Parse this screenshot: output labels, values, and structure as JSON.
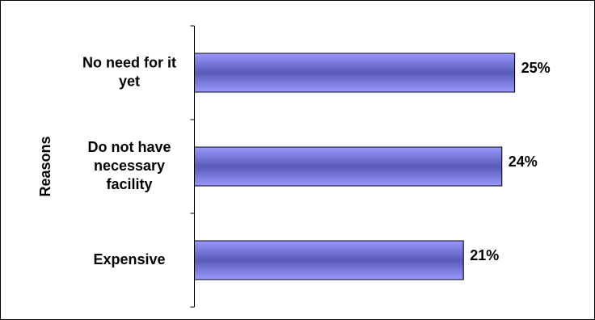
{
  "chart_data": {
    "type": "bar",
    "orientation": "horizontal",
    "ylabel": "Reasons",
    "xlabel": "",
    "categories": [
      [
        "No need for it",
        "yet"
      ],
      [
        "Do not have",
        "necessary",
        "facility"
      ],
      [
        "Expensive"
      ]
    ],
    "values": [
      25,
      24,
      21
    ],
    "data_labels": [
      "25%",
      "24%",
      "21%"
    ],
    "xlim": [
      0,
      29
    ],
    "grid": false,
    "legend": "none",
    "bar_color": "#9999ff",
    "bar_dark": "#5a5ab8",
    "bar_border": "#000000"
  }
}
